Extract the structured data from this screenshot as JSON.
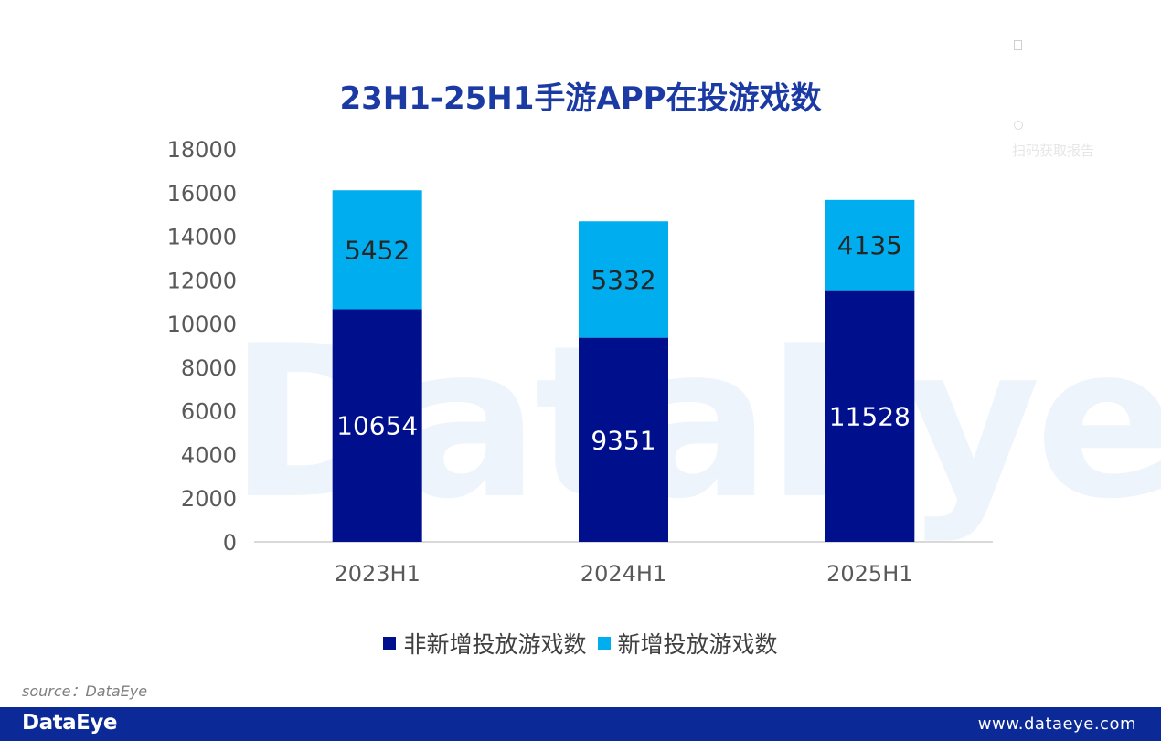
{
  "watermark": "DataEye",
  "faint_text": "扫码获取报告",
  "chart_data": {
    "type": "bar",
    "stacked": true,
    "title": "23H1-25H1手游APP在投游戏数",
    "categories": [
      "2023H1",
      "2024H1",
      "2025H1"
    ],
    "series": [
      {
        "name": "非新增投放游戏数",
        "values": [
          10654,
          9351,
          11528
        ],
        "color": "#000f8c",
        "label_color": "#ffffff"
      },
      {
        "name": "新增投放游戏数",
        "values": [
          5452,
          5332,
          4135
        ],
        "color": "#00aeef",
        "label_color": "#262626"
      }
    ],
    "ylim": [
      0,
      18000
    ],
    "yticks": [
      "18000",
      "16000",
      "14000",
      "12000",
      "10000",
      "8000",
      "6000",
      "4000",
      "2000",
      "0"
    ],
    "grid": false,
    "legend_position": "bottom"
  },
  "source": "source：DataEye",
  "footer": {
    "logo": "DataEye",
    "url": "www.dataeye.com"
  }
}
